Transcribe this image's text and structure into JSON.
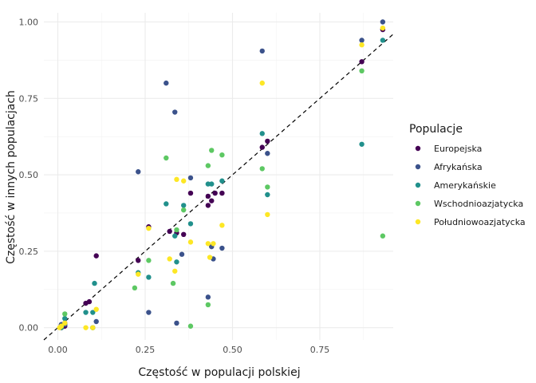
{
  "chart_data": {
    "type": "scatter",
    "xlabel": "Częstość w populacji polskiej",
    "ylabel": "Częstość w innych populacjach",
    "xlim": [
      -0.04,
      0.96
    ],
    "ylim": [
      -0.04,
      1.03
    ],
    "x_ticks": [
      {
        "value": 0.0,
        "label": "0.00"
      },
      {
        "value": 0.25,
        "label": "0.25"
      },
      {
        "value": 0.5,
        "label": "0.50"
      },
      {
        "value": 0.75,
        "label": "0.75"
      }
    ],
    "y_ticks": [
      {
        "value": 0.0,
        "label": "0.00"
      },
      {
        "value": 0.25,
        "label": "0.25"
      },
      {
        "value": 0.5,
        "label": "0.50"
      },
      {
        "value": 0.75,
        "label": "0.75"
      },
      {
        "value": 1.0,
        "label": "1.00"
      }
    ],
    "grid": true,
    "reference_line": {
      "slope": 1,
      "intercept": 0,
      "style": "dashed"
    },
    "legend": {
      "title": "Populacje",
      "position": "right"
    },
    "series": [
      {
        "name": "Europejska",
        "color": "#440154",
        "points": [
          [
            0.01,
            0.0
          ],
          [
            0.01,
            0.01
          ],
          [
            0.015,
            0.005
          ],
          [
            0.02,
            0.015
          ],
          [
            0.02,
            0.005
          ],
          [
            0.08,
            0.08
          ],
          [
            0.09,
            0.085
          ],
          [
            0.11,
            0.235
          ],
          [
            0.23,
            0.22
          ],
          [
            0.26,
            0.33
          ],
          [
            0.32,
            0.315
          ],
          [
            0.34,
            0.31
          ],
          [
            0.36,
            0.305
          ],
          [
            0.38,
            0.44
          ],
          [
            0.43,
            0.4
          ],
          [
            0.43,
            0.43
          ],
          [
            0.44,
            0.415
          ],
          [
            0.45,
            0.44
          ],
          [
            0.47,
            0.44
          ],
          [
            0.585,
            0.59
          ],
          [
            0.6,
            0.61
          ],
          [
            0.87,
            0.87
          ],
          [
            0.93,
            0.975
          ]
        ]
      },
      {
        "name": "Afrykańska",
        "color": "#3b528b",
        "points": [
          [
            0.01,
            0.01
          ],
          [
            0.02,
            0.01
          ],
          [
            0.1,
            0.0
          ],
          [
            0.11,
            0.02
          ],
          [
            0.23,
            0.51
          ],
          [
            0.26,
            0.05
          ],
          [
            0.31,
            0.8
          ],
          [
            0.335,
            0.705
          ],
          [
            0.34,
            0.015
          ],
          [
            0.355,
            0.24
          ],
          [
            0.38,
            0.49
          ],
          [
            0.43,
            0.1
          ],
          [
            0.44,
            0.265
          ],
          [
            0.445,
            0.225
          ],
          [
            0.47,
            0.26
          ],
          [
            0.585,
            0.905
          ],
          [
            0.6,
            0.57
          ],
          [
            0.87,
            0.94
          ],
          [
            0.93,
            1.0
          ]
        ]
      },
      {
        "name": "Amerykańskie",
        "color": "#21908c",
        "points": [
          [
            0.01,
            0.0
          ],
          [
            0.02,
            0.03
          ],
          [
            0.08,
            0.05
          ],
          [
            0.1,
            0.05
          ],
          [
            0.105,
            0.145
          ],
          [
            0.23,
            0.18
          ],
          [
            0.26,
            0.165
          ],
          [
            0.31,
            0.405
          ],
          [
            0.335,
            0.3
          ],
          [
            0.34,
            0.215
          ],
          [
            0.36,
            0.4
          ],
          [
            0.38,
            0.34
          ],
          [
            0.43,
            0.47
          ],
          [
            0.44,
            0.47
          ],
          [
            0.47,
            0.48
          ],
          [
            0.585,
            0.635
          ],
          [
            0.6,
            0.435
          ],
          [
            0.87,
            0.6
          ],
          [
            0.93,
            0.94
          ]
        ]
      },
      {
        "name": "Wschodnioazjatycka",
        "color": "#5dc863",
        "points": [
          [
            0.01,
            0.005
          ],
          [
            0.02,
            0.045
          ],
          [
            0.1,
            0.0
          ],
          [
            0.22,
            0.13
          ],
          [
            0.26,
            0.22
          ],
          [
            0.31,
            0.555
          ],
          [
            0.33,
            0.145
          ],
          [
            0.34,
            0.32
          ],
          [
            0.36,
            0.385
          ],
          [
            0.38,
            0.005
          ],
          [
            0.43,
            0.075
          ],
          [
            0.43,
            0.53
          ],
          [
            0.44,
            0.58
          ],
          [
            0.47,
            0.565
          ],
          [
            0.585,
            0.52
          ],
          [
            0.6,
            0.46
          ],
          [
            0.87,
            0.84
          ],
          [
            0.93,
            0.3
          ]
        ]
      },
      {
        "name": "Południowoazjatycka",
        "color": "#fde725",
        "points": [
          [
            0.005,
            0.0
          ],
          [
            0.01,
            0.005
          ],
          [
            0.02,
            0.015
          ],
          [
            0.08,
            0.0
          ],
          [
            0.1,
            0.0
          ],
          [
            0.11,
            0.06
          ],
          [
            0.23,
            0.175
          ],
          [
            0.26,
            0.325
          ],
          [
            0.32,
            0.225
          ],
          [
            0.335,
            0.185
          ],
          [
            0.34,
            0.485
          ],
          [
            0.36,
            0.48
          ],
          [
            0.38,
            0.28
          ],
          [
            0.43,
            0.275
          ],
          [
            0.435,
            0.23
          ],
          [
            0.445,
            0.275
          ],
          [
            0.47,
            0.335
          ],
          [
            0.585,
            0.8
          ],
          [
            0.6,
            0.37
          ],
          [
            0.87,
            0.925
          ],
          [
            0.93,
            0.98
          ]
        ]
      }
    ]
  }
}
